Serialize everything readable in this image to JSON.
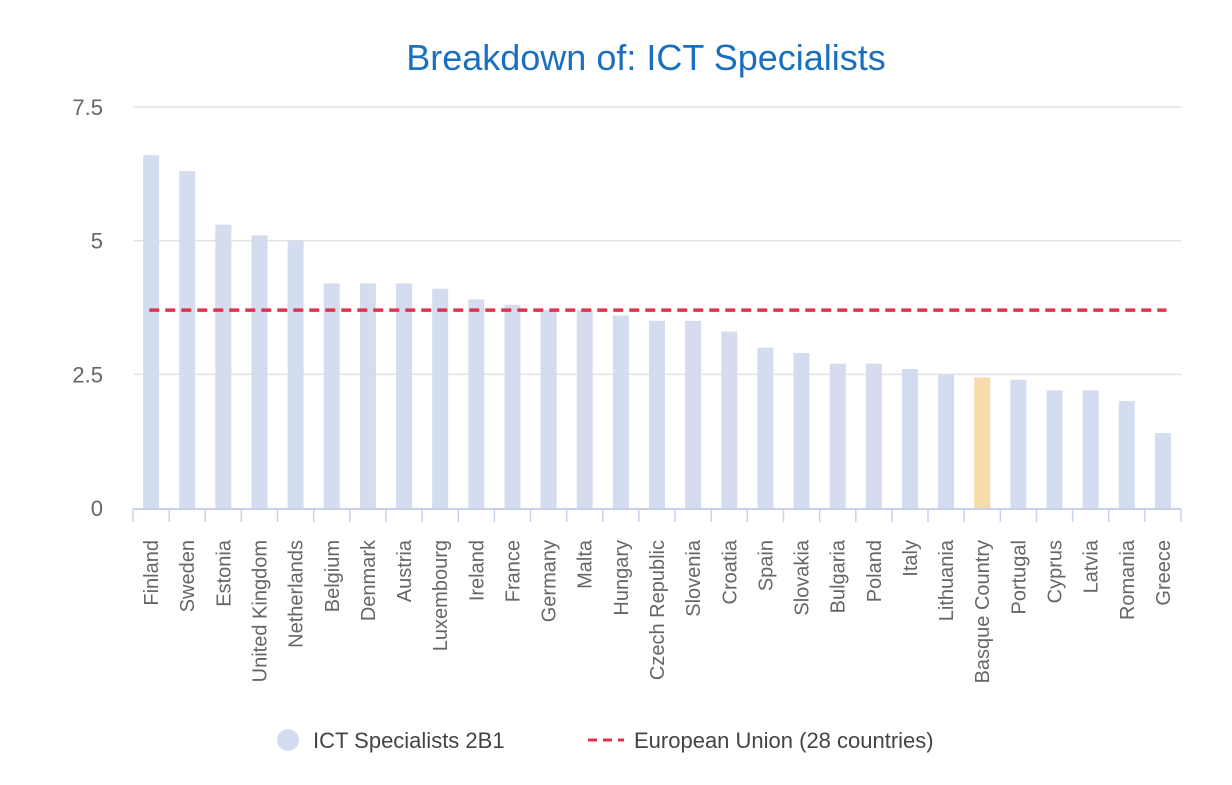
{
  "chart_data": {
    "type": "bar",
    "title": "Breakdown of: ICT Specialists",
    "xlabel": "",
    "ylabel": "",
    "ylim": [
      0,
      7.5
    ],
    "yticks": [
      0,
      2.5,
      5,
      7.5
    ],
    "ytick_labels": [
      "0",
      "2.5",
      "5",
      "7.5"
    ],
    "grid": true,
    "legend_position": "bottom-center",
    "categories": [
      "Finland",
      "Sweden",
      "Estonia",
      "United Kingdom",
      "Netherlands",
      "Belgium",
      "Denmark",
      "Austria",
      "Luxembourg",
      "Ireland",
      "France",
      "Germany",
      "Malta",
      "Hungary",
      "Czech Republic",
      "Slovenia",
      "Croatia",
      "Spain",
      "Slovakia",
      "Bulgaria",
      "Poland",
      "Italy",
      "Lithuania",
      "Basque Country",
      "Portugal",
      "Cyprus",
      "Latvia",
      "Romania",
      "Greece"
    ],
    "series": [
      {
        "name": "ICT Specialists 2B1",
        "type": "bar",
        "color": "#d4dcf0",
        "highlight_category": "Basque Country",
        "highlight_color": "#f5dcaa",
        "values": [
          6.6,
          6.3,
          5.3,
          5.1,
          5.0,
          4.2,
          4.2,
          4.2,
          4.1,
          3.9,
          3.8,
          3.7,
          3.7,
          3.6,
          3.5,
          3.5,
          3.3,
          3.0,
          2.9,
          2.7,
          2.7,
          2.6,
          2.5,
          2.44,
          2.4,
          2.2,
          2.2,
          2.0,
          1.4
        ]
      },
      {
        "name": "European Union (28 countries)",
        "type": "reference-line",
        "color": "#e0334d",
        "value": 3.7
      }
    ]
  },
  "legend": {
    "bar_label": "ICT Specialists 2B1",
    "line_label": "European Union (28 countries)"
  },
  "colors": {
    "title": "#1a6fbf",
    "axis_text": "#666666",
    "grid": "#e3e3e3",
    "axis_line": "#c8d2ea"
  }
}
